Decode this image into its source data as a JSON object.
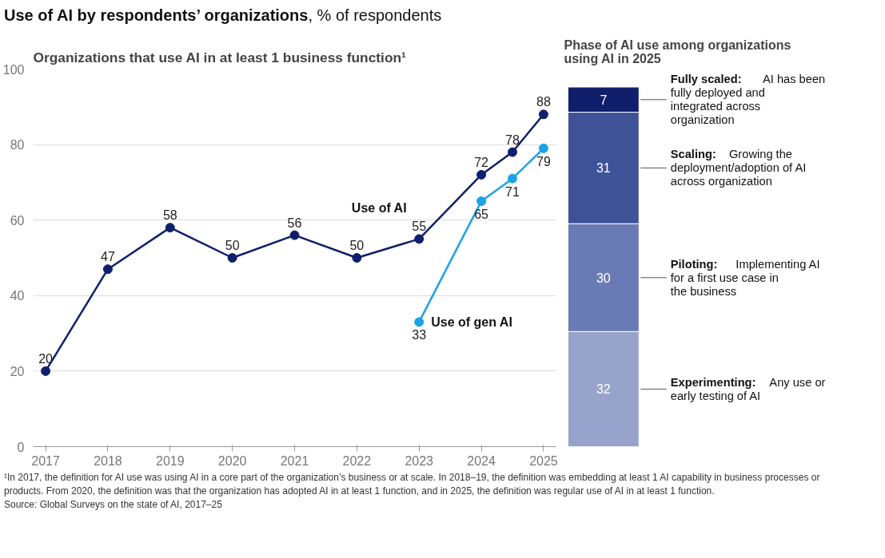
{
  "chart_data": [
    {
      "type": "line",
      "title": "Use of AI by respondents’ organizations, % of respondents",
      "subtitle": "Organizations that use AI in at least 1 business function¹",
      "x": [
        2017,
        2018,
        2019,
        2020,
        2021,
        2022,
        2023,
        2024,
        2024.5,
        2025
      ],
      "series": [
        {
          "name": "Use of AI",
          "color": "#0f1f6b",
          "values": [
            20,
            47,
            58,
            50,
            56,
            50,
            55,
            72,
            78,
            88
          ]
        },
        {
          "name": "Use of gen AI",
          "color": "#1aa3e8",
          "values": [
            null,
            null,
            null,
            null,
            null,
            null,
            33,
            65,
            71,
            79
          ]
        }
      ],
      "xlim": [
        2016.8,
        2025.2
      ],
      "xticks": [
        2017,
        2018,
        2019,
        2020,
        2021,
        2022,
        2023,
        2024,
        2025
      ],
      "ylim": [
        0,
        100
      ],
      "yticks": [
        0,
        20,
        40,
        60,
        80,
        100
      ],
      "grid": "y",
      "marker": "circle",
      "data_labels": true,
      "legend": false,
      "annotations": [
        "¹In 2017, the definition for AI use was using AI in a core part of the organization’s business or at scale. In 2018–19, the definition was embedding at least 1 AI capability in business processes or products. From 2020, the definition was that the organization has adopted AI in at least 1 function, and in 2025, the definition was regular use of AI in at least 1 function.",
        "Source: Global Surveys on the state of AI, 2017–25"
      ]
    },
    {
      "type": "bar",
      "title": "Phase of AI use among organizations using AI in 2025",
      "stacked": true,
      "categories": [
        null
      ],
      "data_labels": true,
      "legend": false,
      "series": [
        {
          "name": "Experimenting: Any use or early testing of AI",
          "color": "#98a3cb",
          "values": [
            32
          ]
        },
        {
          "name": "Piloting: Implementing AI for a first use case in the business",
          "color": "#6a7ab5",
          "values": [
            30
          ]
        },
        {
          "name": "Scaling: Growing the deployment/adoption of AI across organization",
          "color": "#3f5298",
          "values": [
            31
          ]
        },
        {
          "name": "Fully scaled: AI has been fully deployed and integrated across organization",
          "color": "#0f1f6b",
          "values": [
            7
          ]
        }
      ]
    }
  ]
}
